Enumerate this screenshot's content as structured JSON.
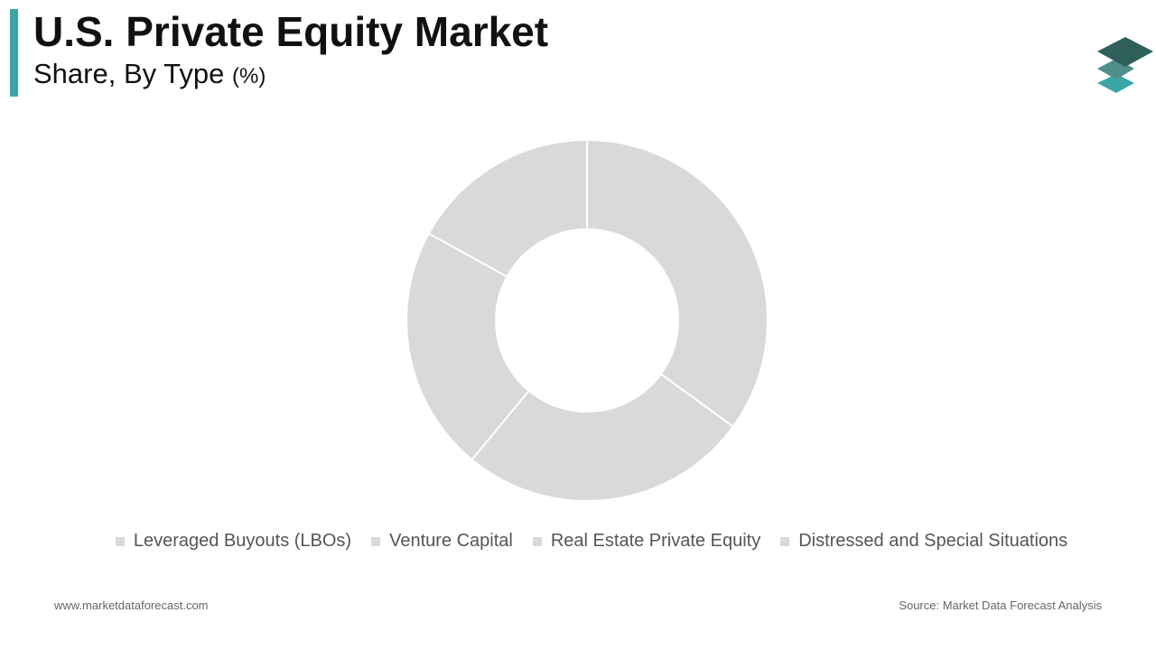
{
  "chart_data": {
    "type": "donut",
    "title": "U.S. Private Equity Market",
    "subtitle": "Share, By Type",
    "unit": "(%)",
    "categories": [
      "Leveraged Buyouts (LBOs)",
      "Venture Capital",
      "Real Estate Private Equity",
      "Distressed and Special Situations"
    ],
    "values": [
      35,
      26,
      22,
      17
    ],
    "color": "#d9d9d9"
  },
  "footer": {
    "website": "www.marketdataforecast.com",
    "source": "Source: Market Data Forecast Analysis"
  }
}
